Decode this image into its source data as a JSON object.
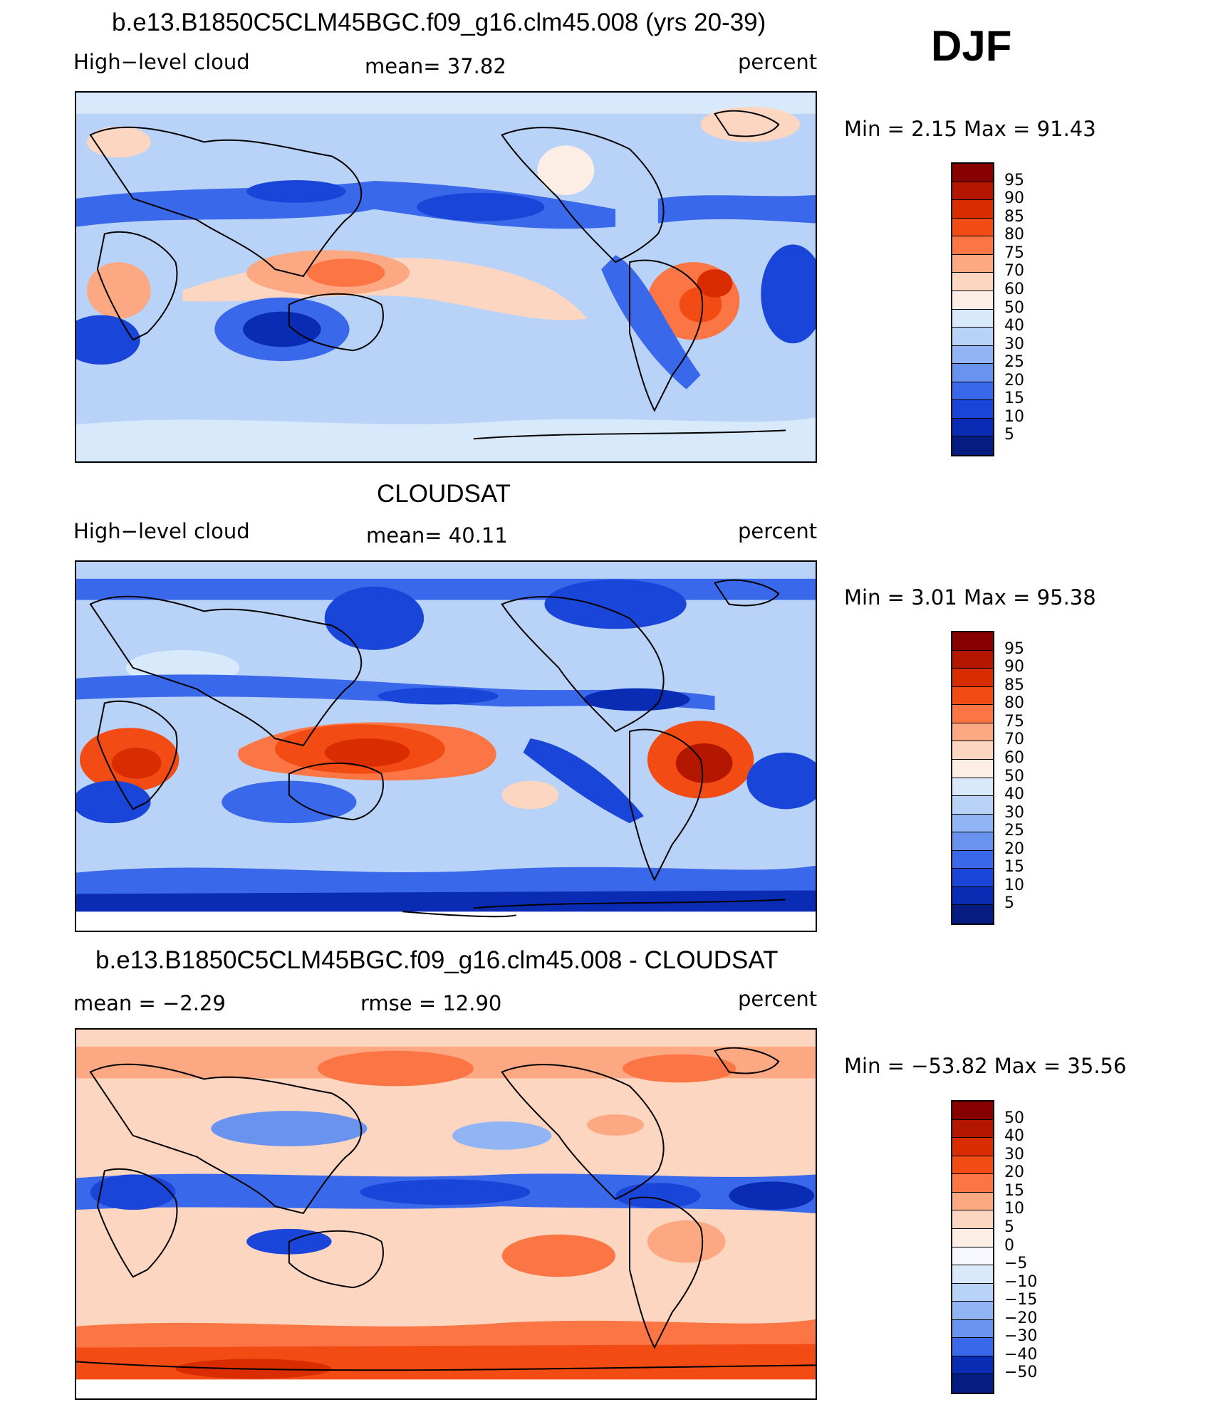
{
  "season": "DJF",
  "panels": [
    {
      "title": "b.e13.B1850C5CLM45BGC.f09_g16.clm45.008 (yrs 20-39)",
      "variable": "High−level cloud",
      "stat1": "mean=   37.82",
      "stat2": "",
      "units": "percent",
      "minmax": "Min  =     2.15  Max  =    91.43",
      "colorbar": {
        "labels": [
          "95",
          "90",
          "85",
          "80",
          "75",
          "70",
          "60",
          "50",
          "40",
          "30",
          "25",
          "20",
          "15",
          "10",
          "5"
        ],
        "colors": [
          "#870000",
          "#b31700",
          "#d92c00",
          "#f24b14",
          "#fc7645",
          "#fca883",
          "#fdd6c1",
          "#fdeee5",
          "#d8e9fb",
          "#b9d3f8",
          "#90b4f4",
          "#6a93f0",
          "#3a68ea",
          "#1a45d9",
          "#0a2cb5",
          "#061c80"
        ]
      }
    },
    {
      "title": "CLOUDSAT",
      "variable": "High−level cloud",
      "stat1": "mean=   40.11",
      "stat2": "",
      "units": "percent",
      "minmax": "Min  =     3.01  Max  =    95.38",
      "colorbar": {
        "labels": [
          "95",
          "90",
          "85",
          "80",
          "75",
          "70",
          "60",
          "50",
          "40",
          "30",
          "25",
          "20",
          "15",
          "10",
          "5"
        ],
        "colors": [
          "#870000",
          "#b31700",
          "#d92c00",
          "#f24b14",
          "#fc7645",
          "#fca883",
          "#fdd6c1",
          "#fdeee5",
          "#d8e9fb",
          "#b9d3f8",
          "#90b4f4",
          "#6a93f0",
          "#3a68ea",
          "#1a45d9",
          "#0a2cb5",
          "#061c80"
        ]
      }
    },
    {
      "title": "b.e13.B1850C5CLM45BGC.f09_g16.clm45.008 - CLOUDSAT",
      "variable": "",
      "stat1": "mean  =    −2.29",
      "stat2": "rmse  =    12.90",
      "units": "percent",
      "minmax": "Min  = −53.82  Max  =    35.56",
      "colorbar": {
        "labels": [
          "50",
          "40",
          "30",
          "20",
          "15",
          "10",
          "5",
          "0",
          "−5",
          "−10",
          "−15",
          "−20",
          "−30",
          "−40",
          "−50"
        ],
        "colors": [
          "#870000",
          "#b31700",
          "#d92c00",
          "#f24b14",
          "#fc7645",
          "#fca883",
          "#fdd6c1",
          "#fdeee5",
          "#f6f8fd",
          "#d8e9fb",
          "#b9d3f8",
          "#90b4f4",
          "#6a93f0",
          "#3a68ea",
          "#0a2cb5",
          "#061c80"
        ]
      }
    }
  ]
}
